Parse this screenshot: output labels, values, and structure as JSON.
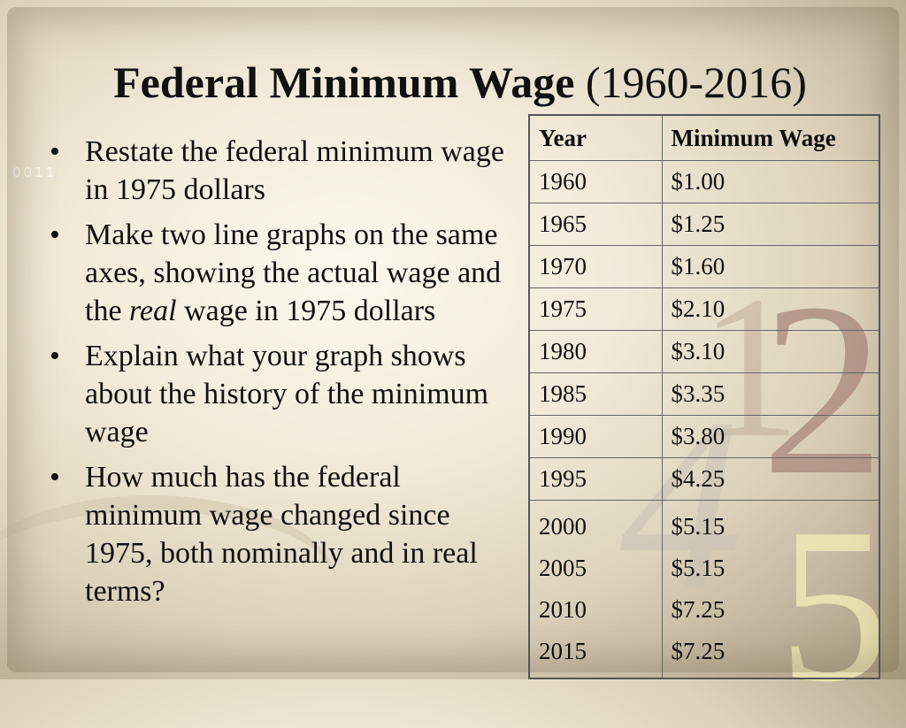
{
  "title": {
    "bold": "Federal Minimum Wage",
    "range": "(1960-2016)"
  },
  "decor": {
    "code": "0011",
    "digit_one": "1",
    "digit_two": "2",
    "digit_four": "4",
    "digit_five": "5"
  },
  "bullets": [
    {
      "parts": [
        "Restate the federal minimum wage in 1975 dollars"
      ]
    },
    {
      "parts": [
        "Make two line graphs on the same axes, showing the actual wage and the ",
        "real",
        " wage in 1975 dollars"
      ]
    },
    {
      "parts": [
        "Explain what your graph shows about the history of the minimum wage"
      ]
    },
    {
      "parts": [
        "How much has the federal minimum wage changed since 1975, both nominally and in real terms?"
      ]
    }
  ],
  "table": {
    "headers": [
      "Year",
      "Minimum Wage"
    ],
    "rows": [
      [
        "1960",
        "$1.00"
      ],
      [
        "1965",
        "$1.25"
      ],
      [
        "1970",
        "$1.60"
      ],
      [
        "1975",
        "$2.10"
      ],
      [
        "1980",
        "$3.10"
      ],
      [
        "1985",
        "$3.35"
      ],
      [
        "1990",
        "$3.80"
      ],
      [
        "1995",
        "$4.25"
      ]
    ],
    "last_group": [
      [
        "2000",
        "$5.15"
      ],
      [
        "2005",
        "$5.15"
      ],
      [
        "2010",
        "$7.25"
      ],
      [
        "2015",
        "$7.25"
      ]
    ]
  }
}
